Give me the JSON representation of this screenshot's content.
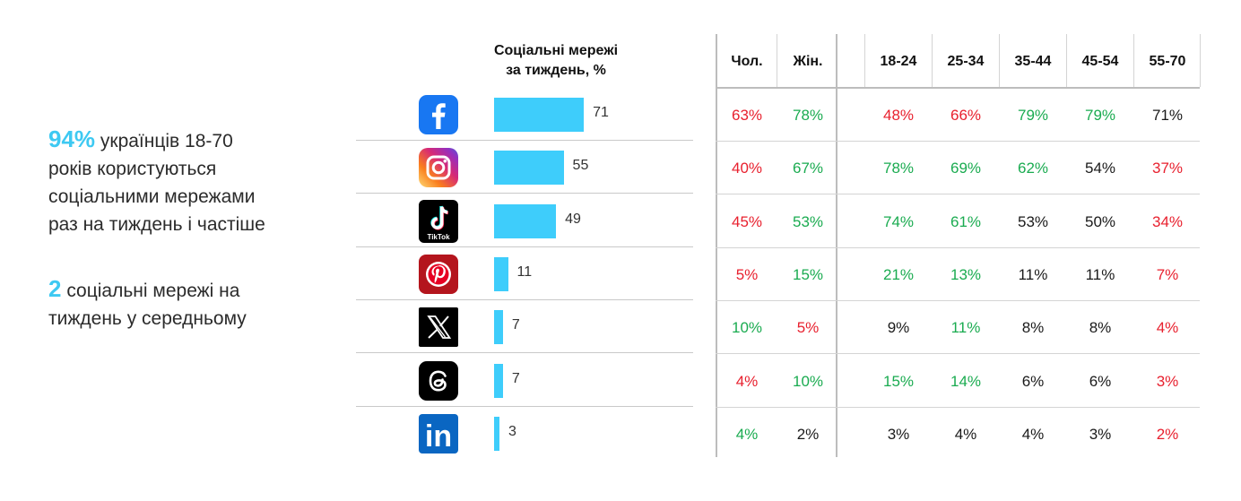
{
  "colors": {
    "accent": "#3ec9f2",
    "bar": "#3ecdfb",
    "red": "#e8202e",
    "green": "#1aab50",
    "black": "#1a1a1a"
  },
  "summary": {
    "stat1_value": "94%",
    "stat1_lines": [
      "українців 18-70",
      "років користуються",
      "соціальними мережами",
      "раз на тиждень і частіше"
    ],
    "stat2_value": "2",
    "stat2_lines": [
      "соціальні мережі на",
      "тиждень у середньому"
    ]
  },
  "chart_data": {
    "type": "bar",
    "orientation": "horizontal",
    "title": "Соціальні мережі\nза тиждень, %",
    "categories": [
      "facebook-icon",
      "instagram-icon",
      "tiktok-icon",
      "pinterest-icon",
      "x-icon",
      "threads-icon",
      "linkedin-icon"
    ],
    "values": [
      71,
      55,
      49,
      11,
      7,
      7,
      3
    ],
    "xlim": [
      0,
      100
    ]
  },
  "logos": {
    "tiktok_label": "TikTok",
    "linkedin_label": "in"
  },
  "table": {
    "columns": [
      "Чол.",
      "Жін.",
      "18-24",
      "25-34",
      "35-44",
      "45-54",
      "55-70"
    ],
    "rows": [
      [
        {
          "v": "63%",
          "c": "red"
        },
        {
          "v": "78%",
          "c": "green"
        },
        {
          "v": "48%",
          "c": "red"
        },
        {
          "v": "66%",
          "c": "red"
        },
        {
          "v": "79%",
          "c": "green"
        },
        {
          "v": "79%",
          "c": "green"
        },
        {
          "v": "71%",
          "c": "black"
        }
      ],
      [
        {
          "v": "40%",
          "c": "red"
        },
        {
          "v": "67%",
          "c": "green"
        },
        {
          "v": "78%",
          "c": "green"
        },
        {
          "v": "69%",
          "c": "green"
        },
        {
          "v": "62%",
          "c": "green"
        },
        {
          "v": "54%",
          "c": "black"
        },
        {
          "v": "37%",
          "c": "red"
        }
      ],
      [
        {
          "v": "45%",
          "c": "red"
        },
        {
          "v": "53%",
          "c": "green"
        },
        {
          "v": "74%",
          "c": "green"
        },
        {
          "v": "61%",
          "c": "green"
        },
        {
          "v": "53%",
          "c": "black"
        },
        {
          "v": "50%",
          "c": "black"
        },
        {
          "v": "34%",
          "c": "red"
        }
      ],
      [
        {
          "v": "5%",
          "c": "red"
        },
        {
          "v": "15%",
          "c": "green"
        },
        {
          "v": "21%",
          "c": "green"
        },
        {
          "v": "13%",
          "c": "green"
        },
        {
          "v": "11%",
          "c": "black"
        },
        {
          "v": "11%",
          "c": "black"
        },
        {
          "v": "7%",
          "c": "red"
        }
      ],
      [
        {
          "v": "10%",
          "c": "green"
        },
        {
          "v": "5%",
          "c": "red"
        },
        {
          "v": "9%",
          "c": "black"
        },
        {
          "v": "11%",
          "c": "green"
        },
        {
          "v": "8%",
          "c": "black"
        },
        {
          "v": "8%",
          "c": "black"
        },
        {
          "v": "4%",
          "c": "red"
        }
      ],
      [
        {
          "v": "4%",
          "c": "red"
        },
        {
          "v": "10%",
          "c": "green"
        },
        {
          "v": "15%",
          "c": "green"
        },
        {
          "v": "14%",
          "c": "green"
        },
        {
          "v": "6%",
          "c": "black"
        },
        {
          "v": "6%",
          "c": "black"
        },
        {
          "v": "3%",
          "c": "red"
        }
      ],
      [
        {
          "v": "4%",
          "c": "green"
        },
        {
          "v": "2%",
          "c": "black"
        },
        {
          "v": "3%",
          "c": "black"
        },
        {
          "v": "4%",
          "c": "black"
        },
        {
          "v": "4%",
          "c": "black"
        },
        {
          "v": "3%",
          "c": "black"
        },
        {
          "v": "2%",
          "c": "red"
        }
      ]
    ]
  }
}
